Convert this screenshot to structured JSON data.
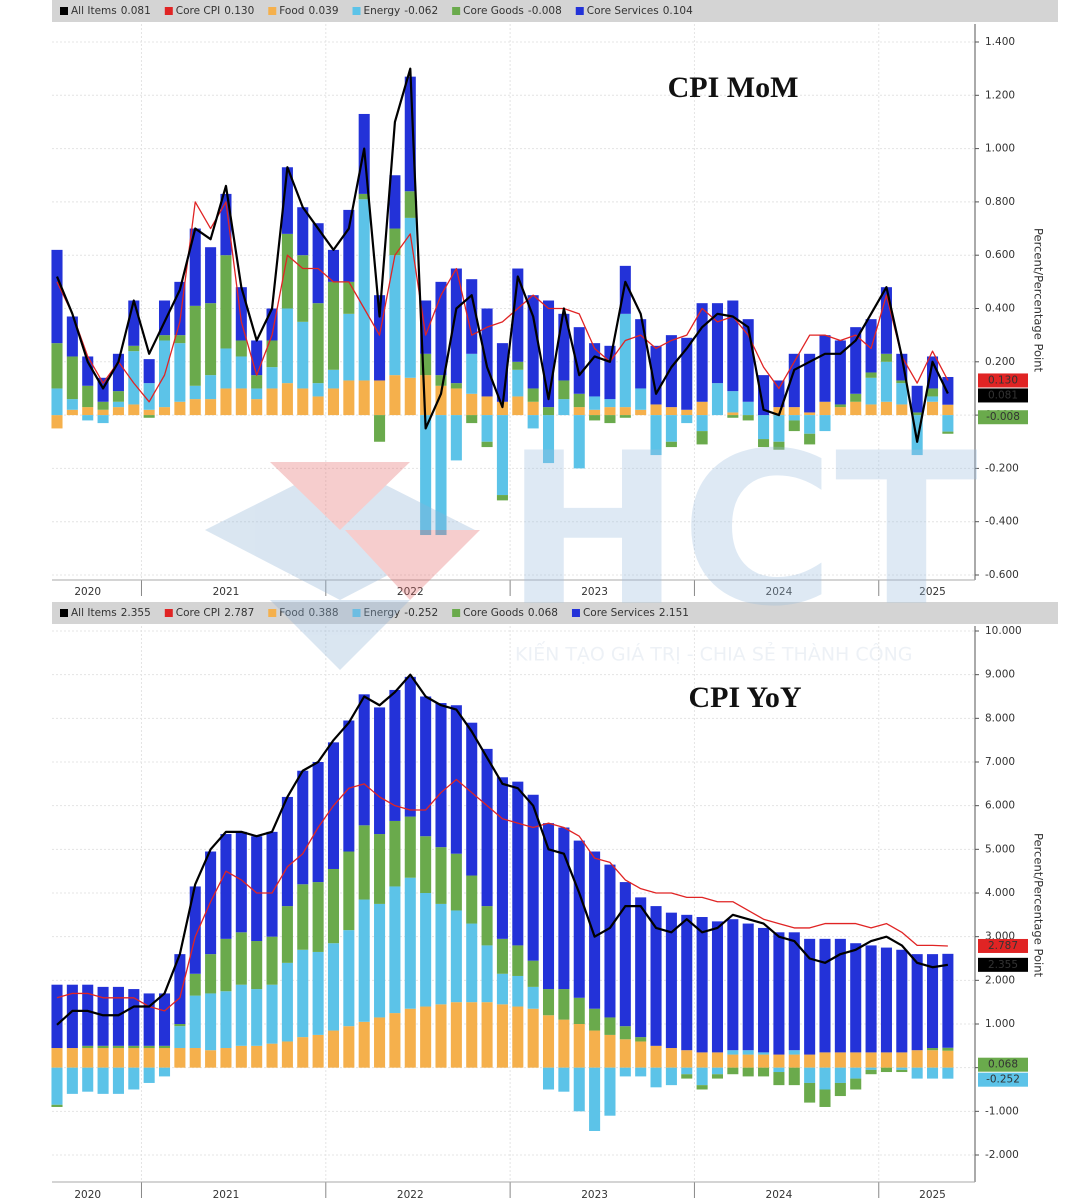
{
  "chart_data": [
    {
      "type": "bar",
      "stacked": true,
      "title": "CPI MoM",
      "y_label": "Percent/Percentage Point",
      "grid": true,
      "tags": [
        1,
        0,
        4
      ],
      "categories": [
        null,
        null,
        "2020",
        null,
        null,
        null,
        null,
        null,
        null,
        null,
        null,
        "2021",
        null,
        null,
        null,
        null,
        null,
        null,
        null,
        null,
        null,
        null,
        null,
        "2022",
        null,
        null,
        null,
        null,
        null,
        null,
        null,
        null,
        null,
        null,
        null,
        "2023",
        null,
        null,
        null,
        null,
        null,
        null,
        null,
        null,
        null,
        null,
        null,
        "2024",
        null,
        null,
        null,
        null,
        null,
        null,
        null,
        null,
        null,
        "2025",
        null
      ],
      "ylim": [
        -0.6,
        1.4
      ],
      "yticks": [
        {
          "value": 1.4,
          "label": "1.400"
        },
        {
          "value": 1.2,
          "label": "1.200"
        },
        {
          "value": 1,
          "label": "1.000"
        },
        {
          "value": 0.8,
          "label": "0.800"
        },
        {
          "value": 0.6,
          "label": "0.600"
        },
        {
          "value": 0.4,
          "label": "0.400"
        },
        {
          "value": 0.2,
          "label": "0.200"
        },
        {
          "value": 0,
          "label": "0.000"
        },
        {
          "value": -0.2,
          "label": "-0.200"
        },
        {
          "value": -0.4,
          "label": "-0.400"
        },
        {
          "value": -0.6,
          "label": "-0.600"
        }
      ],
      "series": [
        {
          "name": "All Items",
          "kind": "line",
          "color": "#000000",
          "values": [
            0.52,
            0.38,
            0.2,
            0.1,
            0.2,
            0.43,
            0.23,
            0.35,
            0.47,
            0.7,
            0.66,
            0.86,
            0.48,
            0.28,
            0.4,
            0.93,
            0.78,
            0.7,
            0.62,
            0.7,
            1.0,
            0.37,
            1.1,
            1.3,
            -0.05,
            0.08,
            0.4,
            0.45,
            0.18,
            0.03,
            0.52,
            0.37,
            0.06,
            0.4,
            0.15,
            0.22,
            0.2,
            0.5,
            0.38,
            0.08,
            0.18,
            0.25,
            0.33,
            0.38,
            0.37,
            0.33,
            0.02,
            0.0,
            0.17,
            0.2,
            0.23,
            0.23,
            0.28,
            0.38,
            0.48,
            0.22,
            -0.1,
            0.2,
            0.081
          ]
        },
        {
          "name": "Core CPI",
          "kind": "line",
          "color": "#e02424",
          "last_value_label": "0.130",
          "values": [
            0.5,
            0.38,
            0.22,
            0.12,
            0.2,
            0.12,
            0.05,
            0.15,
            0.35,
            0.8,
            0.7,
            0.8,
            0.35,
            0.15,
            0.3,
            0.6,
            0.55,
            0.55,
            0.5,
            0.5,
            0.4,
            0.3,
            0.6,
            0.68,
            0.3,
            0.45,
            0.55,
            0.3,
            0.33,
            0.35,
            0.4,
            0.45,
            0.4,
            0.4,
            0.38,
            0.25,
            0.2,
            0.28,
            0.3,
            0.25,
            0.28,
            0.3,
            0.4,
            0.35,
            0.37,
            0.3,
            0.18,
            0.1,
            0.2,
            0.3,
            0.3,
            0.28,
            0.3,
            0.25,
            0.45,
            0.22,
            0.12,
            0.24,
            0.13
          ]
        },
        {
          "name": "Food",
          "kind": "bar",
          "color": "#f5b04c",
          "values": [
            -0.05,
            0.02,
            0.03,
            0.02,
            0.03,
            0.04,
            0.02,
            0.03,
            0.05,
            0.06,
            0.06,
            0.1,
            0.1,
            0.06,
            0.1,
            0.12,
            0.1,
            0.07,
            0.1,
            0.13,
            0.13,
            0.13,
            0.15,
            0.14,
            0.15,
            0.11,
            0.1,
            0.08,
            0.07,
            0.05,
            0.07,
            0.05,
            0.0,
            0.0,
            0.03,
            0.02,
            0.03,
            0.03,
            0.02,
            0.04,
            0.03,
            0.02,
            0.05,
            0.0,
            0.01,
            0.0,
            0.0,
            0.03,
            0.03,
            0.01,
            0.05,
            0.03,
            0.05,
            0.04,
            0.05,
            0.04,
            0.0,
            0.05,
            0.039
          ]
        },
        {
          "name": "Energy",
          "kind": "bar",
          "color": "#5cc3e8",
          "values": [
            0.1,
            0.04,
            -0.02,
            -0.03,
            0.02,
            0.2,
            0.1,
            0.25,
            0.22,
            0.05,
            0.09,
            0.15,
            0.12,
            0.04,
            0.08,
            0.28,
            0.25,
            0.05,
            0.07,
            0.25,
            0.68,
            0.0,
            0.45,
            0.6,
            -0.45,
            -0.45,
            -0.17,
            0.15,
            -0.1,
            -0.3,
            0.1,
            -0.05,
            -0.18,
            0.06,
            -0.2,
            0.05,
            0.03,
            0.35,
            0.08,
            -0.15,
            -0.1,
            -0.03,
            -0.06,
            0.12,
            0.08,
            0.05,
            -0.09,
            -0.1,
            -0.02,
            -0.07,
            -0.06,
            0.0,
            0.0,
            0.1,
            0.15,
            0.08,
            -0.15,
            0.02,
            -0.062
          ]
        },
        {
          "name": "Core Goods",
          "kind": "bar",
          "color": "#6aaa4c",
          "values": [
            0.17,
            0.16,
            0.08,
            0.03,
            0.04,
            0.02,
            -0.01,
            0.02,
            0.03,
            0.3,
            0.27,
            0.35,
            0.06,
            0.05,
            0.1,
            0.28,
            0.25,
            0.3,
            0.33,
            0.12,
            0.02,
            -0.1,
            0.1,
            0.1,
            0.08,
            0.04,
            0.02,
            -0.03,
            -0.02,
            -0.02,
            0.03,
            0.05,
            0.03,
            0.07,
            0.05,
            -0.02,
            -0.03,
            -0.01,
            0.0,
            0.0,
            -0.02,
            0.0,
            -0.05,
            0.0,
            -0.01,
            -0.02,
            -0.03,
            -0.03,
            -0.04,
            -0.04,
            0.0,
            0.01,
            0.03,
            0.02,
            0.03,
            0.01,
            0.01,
            0.03,
            -0.008
          ]
        },
        {
          "name": "Core Services",
          "kind": "bar",
          "color": "#2332d8",
          "values": [
            0.35,
            0.15,
            0.11,
            0.09,
            0.14,
            0.17,
            0.09,
            0.13,
            0.2,
            0.29,
            0.21,
            0.23,
            0.2,
            0.13,
            0.12,
            0.25,
            0.18,
            0.3,
            0.12,
            0.27,
            0.3,
            0.32,
            0.2,
            0.43,
            0.2,
            0.35,
            0.43,
            0.28,
            0.33,
            0.22,
            0.35,
            0.35,
            0.4,
            0.25,
            0.25,
            0.2,
            0.2,
            0.18,
            0.26,
            0.22,
            0.27,
            0.27,
            0.37,
            0.3,
            0.34,
            0.31,
            0.15,
            0.1,
            0.2,
            0.22,
            0.25,
            0.24,
            0.25,
            0.2,
            0.25,
            0.1,
            0.1,
            0.12,
            0.104
          ]
        }
      ]
    },
    {
      "type": "bar",
      "stacked": true,
      "title": "CPI YoY",
      "y_label": "Percent/Percentage Point",
      "grid": true,
      "tags": [
        1,
        0,
        4,
        3
      ],
      "categories": [
        null,
        null,
        "2020",
        null,
        null,
        null,
        null,
        null,
        null,
        null,
        null,
        "2021",
        null,
        null,
        null,
        null,
        null,
        null,
        null,
        null,
        null,
        null,
        null,
        "2022",
        null,
        null,
        null,
        null,
        null,
        null,
        null,
        null,
        null,
        null,
        null,
        "2023",
        null,
        null,
        null,
        null,
        null,
        null,
        null,
        null,
        null,
        null,
        null,
        "2024",
        null,
        null,
        null,
        null,
        null,
        null,
        null,
        null,
        null,
        "2025",
        null
      ],
      "ylim": [
        -2,
        10
      ],
      "yticks": [
        {
          "value": 10,
          "label": "10.000"
        },
        {
          "value": 9,
          "label": "9.000"
        },
        {
          "value": 8,
          "label": "8.000"
        },
        {
          "value": 7,
          "label": "7.000"
        },
        {
          "value": 6,
          "label": "6.000"
        },
        {
          "value": 5,
          "label": "5.000"
        },
        {
          "value": 4,
          "label": "4.000"
        },
        {
          "value": 3,
          "label": "3.000"
        },
        {
          "value": 2,
          "label": "2.000"
        },
        {
          "value": 1,
          "label": "1.000"
        },
        {
          "value": 0,
          "label": "0.000"
        },
        {
          "value": -1,
          "label": "-1.000"
        },
        {
          "value": -2,
          "label": "-2.000"
        }
      ],
      "series": [
        {
          "name": "All Items",
          "kind": "line",
          "color": "#000000",
          "values": [
            0.98,
            1.3,
            1.3,
            1.2,
            1.2,
            1.4,
            1.4,
            1.7,
            2.6,
            4.2,
            5.0,
            5.4,
            5.4,
            5.3,
            5.4,
            6.2,
            6.8,
            7.0,
            7.5,
            7.9,
            8.5,
            8.3,
            8.6,
            9.0,
            8.5,
            8.3,
            8.2,
            7.7,
            7.1,
            6.5,
            6.4,
            6.0,
            5.0,
            4.9,
            4.0,
            3.0,
            3.2,
            3.7,
            3.7,
            3.2,
            3.1,
            3.4,
            3.1,
            3.2,
            3.5,
            3.4,
            3.3,
            3.0,
            2.9,
            2.5,
            2.4,
            2.6,
            2.7,
            2.9,
            3.0,
            2.8,
            2.4,
            2.3,
            2.355
          ]
        },
        {
          "name": "Core CPI",
          "kind": "line",
          "color": "#e02424",
          "values": [
            1.6,
            1.7,
            1.7,
            1.6,
            1.6,
            1.6,
            1.4,
            1.3,
            1.6,
            3.0,
            3.8,
            4.5,
            4.3,
            4.0,
            4.0,
            4.6,
            4.9,
            5.5,
            6.0,
            6.4,
            6.5,
            6.2,
            6.0,
            5.9,
            5.9,
            6.3,
            6.6,
            6.3,
            6.0,
            5.7,
            5.6,
            5.5,
            5.6,
            5.5,
            5.3,
            4.8,
            4.7,
            4.3,
            4.1,
            4.0,
            4.0,
            3.9,
            3.9,
            3.8,
            3.8,
            3.6,
            3.4,
            3.3,
            3.2,
            3.2,
            3.3,
            3.3,
            3.3,
            3.2,
            3.3,
            3.1,
            2.8,
            2.8,
            2.787
          ]
        },
        {
          "name": "Food",
          "kind": "bar",
          "color": "#f5b04c",
          "values": [
            0.45,
            0.45,
            0.45,
            0.45,
            0.45,
            0.45,
            0.45,
            0.45,
            0.45,
            0.45,
            0.4,
            0.45,
            0.5,
            0.5,
            0.55,
            0.6,
            0.7,
            0.75,
            0.85,
            0.95,
            1.05,
            1.15,
            1.25,
            1.35,
            1.4,
            1.45,
            1.5,
            1.5,
            1.5,
            1.45,
            1.4,
            1.35,
            1.2,
            1.1,
            1.0,
            0.85,
            0.75,
            0.65,
            0.6,
            0.5,
            0.45,
            0.4,
            0.35,
            0.35,
            0.3,
            0.3,
            0.3,
            0.3,
            0.3,
            0.3,
            0.35,
            0.35,
            0.35,
            0.35,
            0.35,
            0.35,
            0.4,
            0.4,
            0.388
          ]
        },
        {
          "name": "Energy",
          "kind": "bar",
          "color": "#5cc3e8",
          "values": [
            -0.85,
            -0.6,
            -0.55,
            -0.6,
            -0.6,
            -0.5,
            -0.35,
            -0.2,
            0.5,
            1.2,
            1.3,
            1.3,
            1.4,
            1.3,
            1.35,
            1.8,
            2.0,
            1.9,
            2.0,
            2.2,
            2.8,
            2.6,
            2.9,
            3.0,
            2.6,
            2.3,
            2.1,
            1.8,
            1.3,
            0.7,
            0.7,
            0.5,
            -0.5,
            -0.55,
            -1.0,
            -1.45,
            -1.1,
            -0.2,
            -0.2,
            -0.45,
            -0.4,
            -0.15,
            -0.4,
            -0.15,
            0.1,
            0.1,
            0.05,
            -0.1,
            0.1,
            -0.35,
            -0.5,
            -0.35,
            -0.25,
            -0.05,
            0.0,
            -0.05,
            -0.25,
            -0.25,
            -0.252
          ]
        },
        {
          "name": "Core Goods",
          "kind": "bar",
          "color": "#6aaa4c",
          "values": [
            -0.05,
            0.0,
            0.05,
            0.05,
            0.05,
            0.05,
            0.05,
            0.05,
            0.05,
            0.5,
            0.9,
            1.2,
            1.2,
            1.1,
            1.1,
            1.3,
            1.5,
            1.6,
            1.7,
            1.8,
            1.7,
            1.6,
            1.5,
            1.4,
            1.3,
            1.3,
            1.3,
            1.1,
            0.9,
            0.8,
            0.7,
            0.6,
            0.6,
            0.7,
            0.6,
            0.5,
            0.4,
            0.3,
            0.1,
            0.0,
            0.0,
            -0.1,
            -0.1,
            -0.1,
            -0.15,
            -0.2,
            -0.2,
            -0.3,
            -0.4,
            -0.45,
            -0.4,
            -0.3,
            -0.25,
            -0.1,
            -0.1,
            -0.05,
            0.0,
            0.05,
            0.068
          ]
        },
        {
          "name": "Core Services",
          "kind": "bar",
          "color": "#2332d8",
          "values": [
            1.45,
            1.45,
            1.4,
            1.35,
            1.35,
            1.3,
            1.2,
            1.2,
            1.6,
            2.0,
            2.35,
            2.4,
            2.3,
            2.4,
            2.4,
            2.5,
            2.6,
            2.75,
            2.9,
            3.0,
            3.0,
            2.9,
            3.0,
            3.2,
            3.2,
            3.3,
            3.4,
            3.5,
            3.6,
            3.7,
            3.75,
            3.8,
            3.8,
            3.7,
            3.6,
            3.6,
            3.5,
            3.3,
            3.2,
            3.2,
            3.1,
            3.1,
            3.1,
            3.0,
            3.0,
            2.9,
            2.85,
            2.8,
            2.7,
            2.65,
            2.6,
            2.6,
            2.5,
            2.45,
            2.4,
            2.35,
            2.2,
            2.15,
            2.151
          ]
        }
      ]
    }
  ],
  "watermark": {
    "brand": "HCT",
    "slogan": "KIẾN TẠO GIÁ TRỊ - CHIA SẺ THÀNH CÔNG"
  }
}
